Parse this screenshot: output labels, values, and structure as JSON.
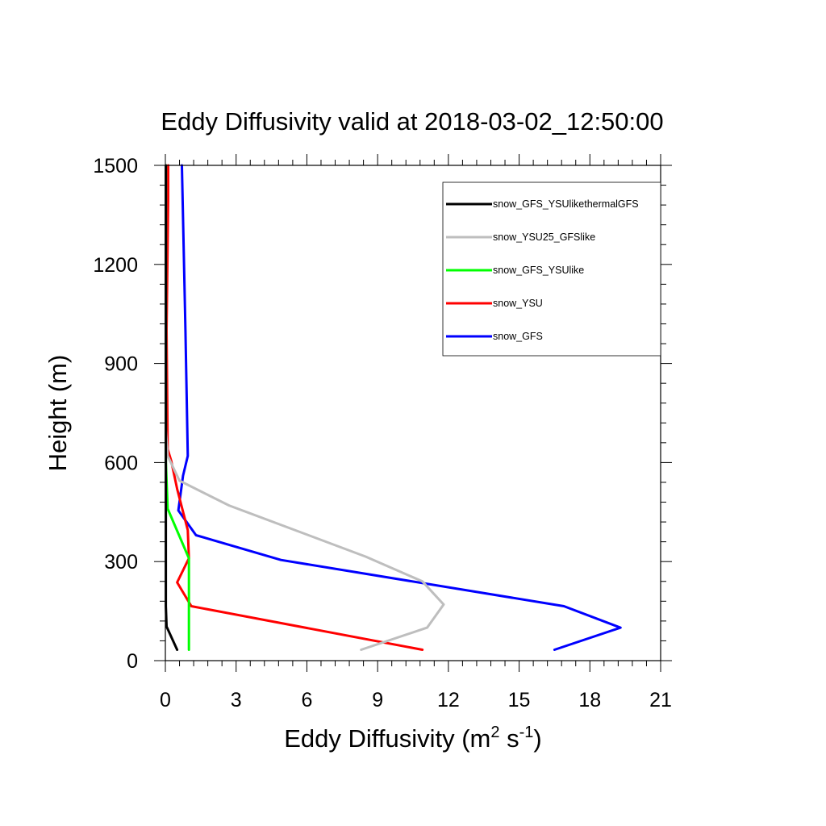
{
  "chart_data": {
    "type": "line",
    "title": "Eddy Diffusivity valid at 2018-03-02_12:50:00",
    "xlabel_main": "Eddy Diffusivity (m",
    "xlabel_sup1": "2",
    "xlabel_mid": " s",
    "xlabel_sup2": "-1",
    "xlabel_end": ")",
    "ylabel": "Height (m)",
    "xlim": [
      0,
      21
    ],
    "ylim": [
      0,
      1500
    ],
    "xticks": [
      0,
      3,
      6,
      9,
      12,
      15,
      18,
      21
    ],
    "yticks": [
      0,
      300,
      600,
      900,
      1200,
      1500
    ],
    "xtick_labels": [
      "0",
      "3",
      "6",
      "9",
      "12",
      "15",
      "18",
      "21"
    ],
    "ytick_labels": [
      "0",
      "300",
      "600",
      "900",
      "1200",
      "1500"
    ],
    "legend_position": "top-right",
    "series": [
      {
        "name": "snow_GFS_YSUlikethermalGFS",
        "color": "#000000",
        "points": [
          [
            0.5,
            33
          ],
          [
            0.05,
            103
          ],
          [
            0.02,
            165
          ],
          [
            0.02,
            300
          ],
          [
            0.02,
            600
          ],
          [
            0.02,
            900
          ],
          [
            0.02,
            1200
          ],
          [
            0.02,
            1500
          ]
        ]
      },
      {
        "name": "snow_YSU25_GFSlike",
        "color": "#bebebe",
        "points": [
          [
            8.3,
            33
          ],
          [
            11.1,
            100
          ],
          [
            11.8,
            170
          ],
          [
            10.9,
            240
          ],
          [
            8.5,
            315
          ],
          [
            2.7,
            470
          ],
          [
            0.6,
            545
          ],
          [
            0.1,
            620
          ],
          [
            0.02,
            700
          ],
          [
            0.02,
            1000
          ],
          [
            0.02,
            1500
          ]
        ]
      },
      {
        "name": "snow_GFS_YSUlike",
        "color": "#00ff00",
        "points": [
          [
            1.0,
            33
          ],
          [
            1.0,
            100
          ],
          [
            1.0,
            170
          ],
          [
            1.0,
            240
          ],
          [
            1.0,
            310
          ],
          [
            0.1,
            460
          ],
          [
            0.02,
            600
          ],
          [
            0.02,
            1000
          ],
          [
            0.02,
            1500
          ]
        ]
      },
      {
        "name": "snow_YSU",
        "color": "#ff0000",
        "points": [
          [
            10.9,
            33
          ],
          [
            1.1,
            165
          ],
          [
            0.5,
            237
          ],
          [
            1.0,
            310
          ],
          [
            0.95,
            395
          ],
          [
            0.5,
            520
          ],
          [
            0.25,
            605
          ],
          [
            0.1,
            640
          ],
          [
            0.05,
            1000
          ],
          [
            0.12,
            1400
          ],
          [
            0.12,
            1500
          ]
        ]
      },
      {
        "name": "snow_GFS",
        "color": "#0000ff",
        "points": [
          [
            16.5,
            33
          ],
          [
            19.3,
            100
          ],
          [
            16.9,
            165
          ],
          [
            4.9,
            305
          ],
          [
            1.3,
            380
          ],
          [
            0.55,
            455
          ],
          [
            0.75,
            560
          ],
          [
            0.95,
            620
          ],
          [
            0.85,
            1000
          ],
          [
            0.7,
            1500
          ]
        ]
      }
    ]
  }
}
